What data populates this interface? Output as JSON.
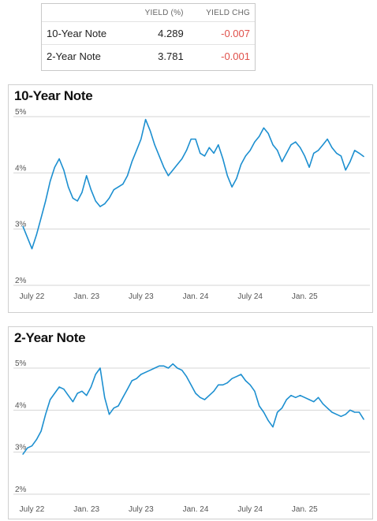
{
  "quote_table": {
    "headers": [
      "",
      "YIELD (%)",
      "YIELD CHG"
    ],
    "rows": [
      {
        "name": "10-Year Note",
        "yield": "4.289",
        "change": "-0.007"
      },
      {
        "name": "2-Year Note",
        "yield": "3.781",
        "change": "-0.001"
      }
    ]
  },
  "colors": {
    "line": "#1c8fd0",
    "negative": "#e0504a",
    "grid": "#d4d4d4"
  },
  "chart_data": [
    {
      "type": "line",
      "title": "10-Year Note",
      "ylim": [
        2,
        5
      ],
      "yticks": [
        2,
        3,
        4,
        5
      ],
      "ytick_labels": [
        "2%",
        "3%",
        "4%",
        "5%"
      ],
      "xlim": [
        0,
        38
      ],
      "xticks": [
        1,
        7,
        13,
        19,
        25,
        31
      ],
      "xtick_labels": [
        "July 22",
        "Jan. 23",
        "July 23",
        "Jan. 24",
        "July 24",
        "Jan. 25"
      ],
      "grid": true,
      "series": [
        {
          "x": [
            0,
            0.5,
            1,
            1.5,
            2,
            2.5,
            3,
            3.5,
            4,
            4.5,
            5,
            5.5,
            6,
            6.5,
            7,
            7.5,
            8,
            8.5,
            9,
            9.5,
            10,
            10.5,
            11,
            11.5,
            12,
            12.5,
            13,
            13.5,
            14,
            14.5,
            15,
            15.5,
            16,
            16.5,
            17,
            17.5,
            18,
            18.5,
            19,
            19.5,
            20,
            20.5,
            21,
            21.5,
            22,
            22.5,
            23,
            23.5,
            24,
            24.5,
            25,
            25.5,
            26,
            26.5,
            27,
            27.5,
            28,
            28.5,
            29,
            29.5,
            30,
            30.5,
            31,
            31.5,
            32,
            32.5,
            33,
            33.5,
            34,
            34.5,
            35,
            35.5,
            36,
            36.5,
            37,
            37.5
          ],
          "y": [
            3.05,
            2.85,
            2.65,
            2.9,
            3.2,
            3.5,
            3.85,
            4.1,
            4.25,
            4.05,
            3.75,
            3.55,
            3.5,
            3.65,
            3.95,
            3.7,
            3.5,
            3.4,
            3.45,
            3.55,
            3.7,
            3.75,
            3.8,
            3.95,
            4.2,
            4.4,
            4.6,
            4.95,
            4.75,
            4.5,
            4.3,
            4.1,
            3.95,
            4.05,
            4.15,
            4.25,
            4.4,
            4.6,
            4.6,
            4.35,
            4.3,
            4.45,
            4.35,
            4.5,
            4.25,
            3.95,
            3.75,
            3.9,
            4.15,
            4.3,
            4.4,
            4.55,
            4.65,
            4.8,
            4.7,
            4.5,
            4.4,
            4.2,
            4.35,
            4.5,
            4.55,
            4.45,
            4.3,
            4.1,
            4.35,
            4.4,
            4.5,
            4.6,
            4.45,
            4.35,
            4.3,
            4.05,
            4.2,
            4.4,
            4.35,
            4.29
          ]
        }
      ]
    },
    {
      "type": "line",
      "title": "2-Year Note",
      "ylim": [
        2,
        5
      ],
      "yticks": [
        2,
        3,
        4,
        5
      ],
      "ytick_labels": [
        "2%",
        "3%",
        "4%",
        "5%"
      ],
      "xlim": [
        0,
        38
      ],
      "xticks": [
        1,
        7,
        13,
        19,
        25,
        31
      ],
      "xtick_labels": [
        "July 22",
        "Jan. 23",
        "July 23",
        "Jan. 24",
        "July 24",
        "Jan. 25"
      ],
      "grid": true,
      "series": [
        {
          "x": [
            0,
            0.5,
            1,
            1.5,
            2,
            2.5,
            3,
            3.5,
            4,
            4.5,
            5,
            5.5,
            6,
            6.5,
            7,
            7.5,
            8,
            8.5,
            9,
            9.5,
            10,
            10.5,
            11,
            11.5,
            12,
            12.5,
            13,
            13.5,
            14,
            14.5,
            15,
            15.5,
            16,
            16.5,
            17,
            17.5,
            18,
            18.5,
            19,
            19.5,
            20,
            20.5,
            21,
            21.5,
            22,
            22.5,
            23,
            23.5,
            24,
            24.5,
            25,
            25.5,
            26,
            26.5,
            27,
            27.5,
            28,
            28.5,
            29,
            29.5,
            30,
            30.5,
            31,
            31.5,
            32,
            32.5,
            33,
            33.5,
            34,
            34.5,
            35,
            35.5,
            36,
            36.5,
            37,
            37.5
          ],
          "y": [
            2.95,
            3.1,
            3.15,
            3.3,
            3.5,
            3.9,
            4.25,
            4.4,
            4.55,
            4.5,
            4.35,
            4.2,
            4.4,
            4.45,
            4.35,
            4.55,
            4.85,
            5.0,
            4.3,
            3.9,
            4.05,
            4.1,
            4.3,
            4.5,
            4.7,
            4.75,
            4.85,
            4.9,
            4.95,
            5.0,
            5.05,
            5.05,
            5.0,
            5.1,
            5.0,
            4.95,
            4.8,
            4.6,
            4.4,
            4.3,
            4.25,
            4.35,
            4.45,
            4.6,
            4.6,
            4.65,
            4.75,
            4.8,
            4.85,
            4.7,
            4.6,
            4.45,
            4.1,
            3.95,
            3.75,
            3.6,
            3.95,
            4.05,
            4.25,
            4.35,
            4.3,
            4.35,
            4.3,
            4.25,
            4.2,
            4.3,
            4.15,
            4.05,
            3.95,
            3.9,
            3.85,
            3.9,
            4.0,
            3.95,
            3.95,
            3.78
          ]
        }
      ]
    }
  ]
}
